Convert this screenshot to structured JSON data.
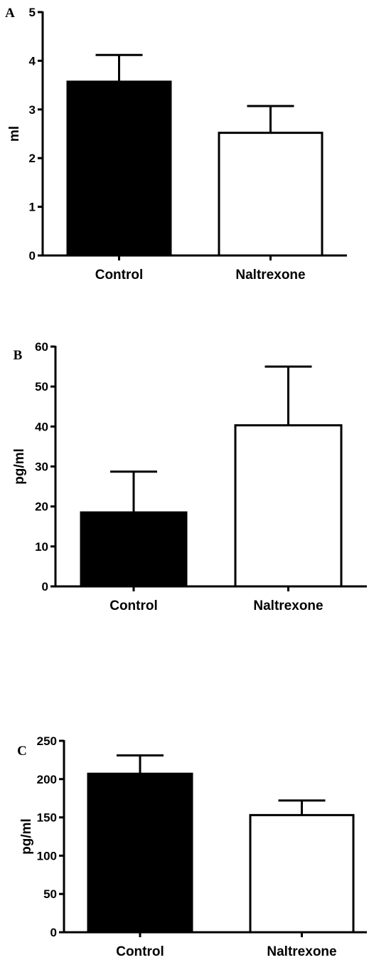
{
  "chart_data": [
    {
      "type": "bar",
      "panel_label": "A",
      "categories": [
        "Control",
        "Naltrexone"
      ],
      "values": [
        3.57,
        2.52
      ],
      "errors": [
        0.55,
        0.55
      ],
      "colors": [
        "#000000",
        "#ffffff"
      ],
      "ylabel": "ml",
      "ylim": [
        0,
        5
      ],
      "yticks": [
        0,
        1,
        2,
        3,
        4,
        5
      ]
    },
    {
      "type": "bar",
      "panel_label": "B",
      "categories": [
        "Control",
        "Naltrexone"
      ],
      "values": [
        18.5,
        40.3
      ],
      "errors": [
        10.2,
        14.7
      ],
      "colors": [
        "#000000",
        "#ffffff"
      ],
      "ylabel": "pg/ml",
      "ylim": [
        0,
        60
      ],
      "yticks": [
        0,
        10,
        20,
        30,
        40,
        50,
        60
      ]
    },
    {
      "type": "bar",
      "panel_label": "C",
      "categories": [
        "Control",
        "Naltrexone"
      ],
      "values": [
        207,
        153
      ],
      "errors": [
        24,
        19
      ],
      "colors": [
        "#000000",
        "#ffffff"
      ],
      "ylabel": "pg/ml",
      "ylim": [
        0,
        250
      ],
      "yticks": [
        0,
        50,
        100,
        150,
        200,
        250
      ]
    }
  ]
}
